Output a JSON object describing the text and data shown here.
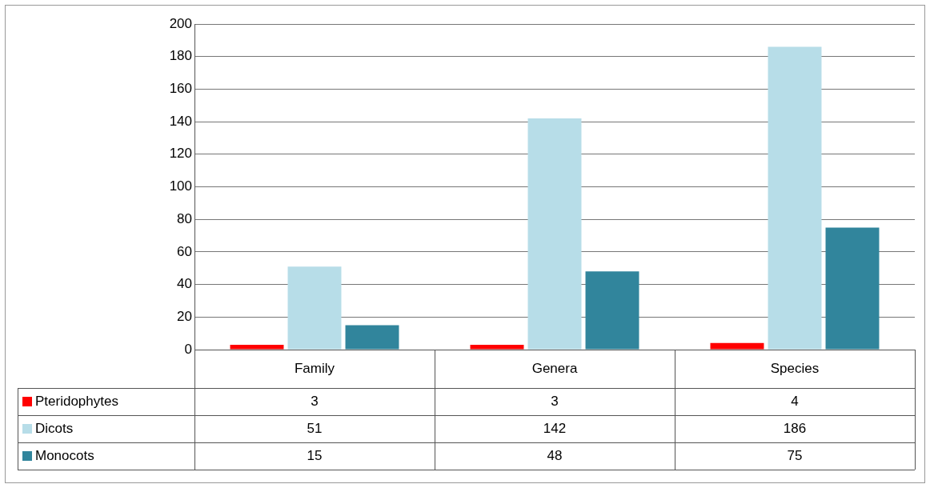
{
  "chart_data": {
    "type": "bar",
    "categories": [
      "Family",
      "Genera",
      "Species"
    ],
    "series": [
      {
        "name": "Pteridophytes",
        "color": "#ff0000",
        "values": [
          3,
          3,
          4
        ]
      },
      {
        "name": "Dicots",
        "color": "#b7dde8",
        "values": [
          51,
          142,
          186
        ]
      },
      {
        "name": "Monocots",
        "color": "#31859c",
        "values": [
          15,
          48,
          75
        ]
      }
    ],
    "ylim": [
      0,
      200
    ],
    "yticks": [
      0,
      20,
      40,
      60,
      80,
      100,
      120,
      140,
      160,
      180,
      200
    ],
    "grid": "y",
    "data_labels": true,
    "legend": "bottom left"
  }
}
